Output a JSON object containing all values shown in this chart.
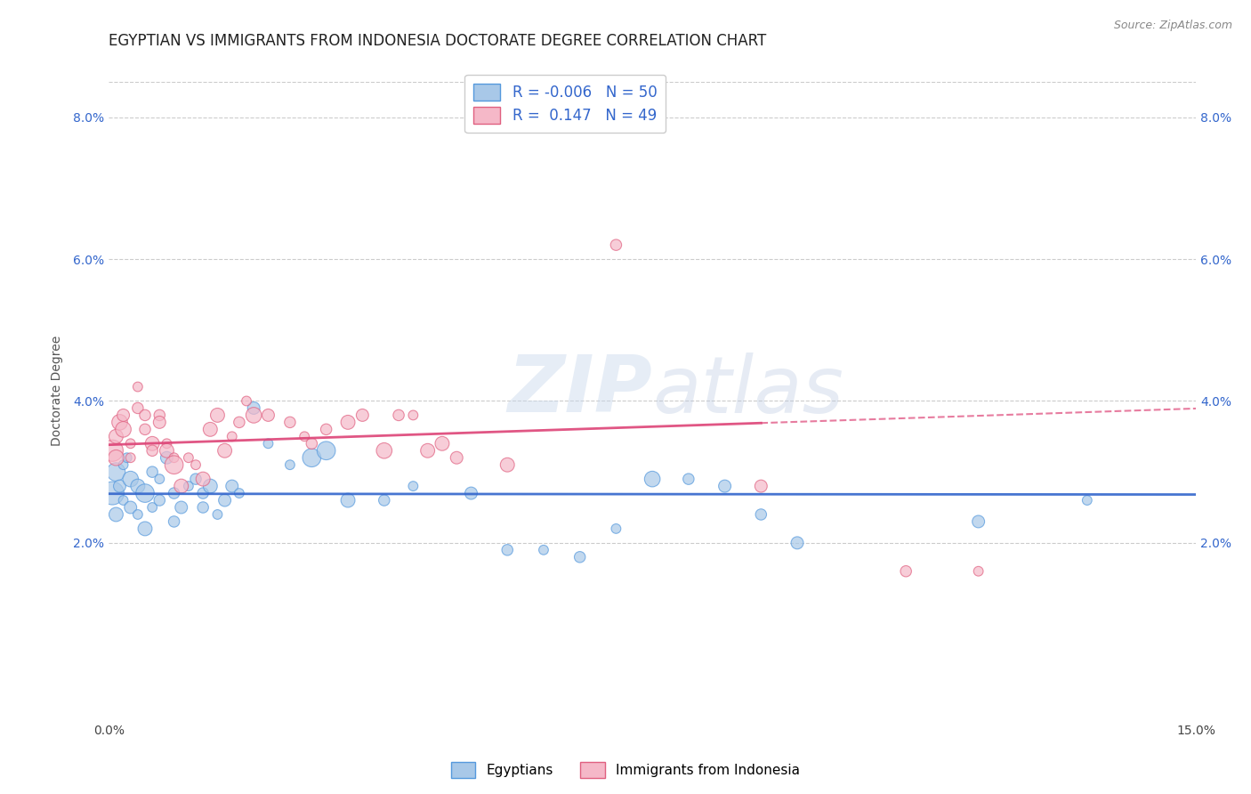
{
  "title": "EGYPTIAN VS IMMIGRANTS FROM INDONESIA DOCTORATE DEGREE CORRELATION CHART",
  "source": "Source: ZipAtlas.com",
  "ylabel": "Doctorate Degree",
  "xlim": [
    0.0,
    0.15
  ],
  "ylim": [
    -0.005,
    0.088
  ],
  "legend_labels": [
    "Egyptians",
    "Immigrants from Indonesia"
  ],
  "r_egyptian": -0.006,
  "n_egyptian": 50,
  "r_indonesia": 0.147,
  "n_indonesia": 49,
  "blue_fill": "#a8c8e8",
  "pink_fill": "#f5b8c8",
  "blue_edge": "#5599dd",
  "pink_edge": "#e06080",
  "blue_line": "#3366cc",
  "pink_line": "#dd4477",
  "watermark_color": "#d8e4f0",
  "title_fontsize": 12,
  "axis_label_fontsize": 10,
  "tick_fontsize": 10,
  "egyptians_x": [
    0.0005,
    0.001,
    0.001,
    0.0015,
    0.002,
    0.002,
    0.0025,
    0.003,
    0.003,
    0.004,
    0.004,
    0.005,
    0.005,
    0.006,
    0.006,
    0.007,
    0.007,
    0.008,
    0.009,
    0.009,
    0.01,
    0.011,
    0.012,
    0.013,
    0.013,
    0.014,
    0.015,
    0.016,
    0.017,
    0.018,
    0.02,
    0.022,
    0.025,
    0.028,
    0.03,
    0.033,
    0.038,
    0.042,
    0.05,
    0.055,
    0.06,
    0.065,
    0.07,
    0.075,
    0.08,
    0.085,
    0.09,
    0.095,
    0.12,
    0.135
  ],
  "egyptians_y": [
    0.027,
    0.03,
    0.024,
    0.028,
    0.026,
    0.031,
    0.032,
    0.029,
    0.025,
    0.028,
    0.024,
    0.027,
    0.022,
    0.03,
    0.025,
    0.029,
    0.026,
    0.032,
    0.027,
    0.023,
    0.025,
    0.028,
    0.029,
    0.025,
    0.027,
    0.028,
    0.024,
    0.026,
    0.028,
    0.027,
    0.039,
    0.034,
    0.031,
    0.032,
    0.033,
    0.026,
    0.026,
    0.028,
    0.027,
    0.019,
    0.019,
    0.018,
    0.022,
    0.029,
    0.029,
    0.028,
    0.024,
    0.02,
    0.023,
    0.026
  ],
  "indonesia_x": [
    0.0005,
    0.001,
    0.001,
    0.0015,
    0.002,
    0.002,
    0.003,
    0.003,
    0.004,
    0.004,
    0.005,
    0.005,
    0.006,
    0.006,
    0.007,
    0.007,
    0.008,
    0.008,
    0.009,
    0.009,
    0.01,
    0.011,
    0.012,
    0.013,
    0.014,
    0.015,
    0.016,
    0.017,
    0.018,
    0.019,
    0.02,
    0.022,
    0.025,
    0.027,
    0.028,
    0.03,
    0.033,
    0.035,
    0.038,
    0.04,
    0.042,
    0.044,
    0.046,
    0.048,
    0.055,
    0.07,
    0.09,
    0.11,
    0.12
  ],
  "indonesia_y": [
    0.033,
    0.035,
    0.032,
    0.037,
    0.038,
    0.036,
    0.034,
    0.032,
    0.042,
    0.039,
    0.038,
    0.036,
    0.034,
    0.033,
    0.038,
    0.037,
    0.034,
    0.033,
    0.032,
    0.031,
    0.028,
    0.032,
    0.031,
    0.029,
    0.036,
    0.038,
    0.033,
    0.035,
    0.037,
    0.04,
    0.038,
    0.038,
    0.037,
    0.035,
    0.034,
    0.036,
    0.037,
    0.038,
    0.033,
    0.038,
    0.038,
    0.033,
    0.034,
    0.032,
    0.031,
    0.062,
    0.028,
    0.016,
    0.016
  ],
  "dot_size": 80,
  "big_dot_size": 350
}
